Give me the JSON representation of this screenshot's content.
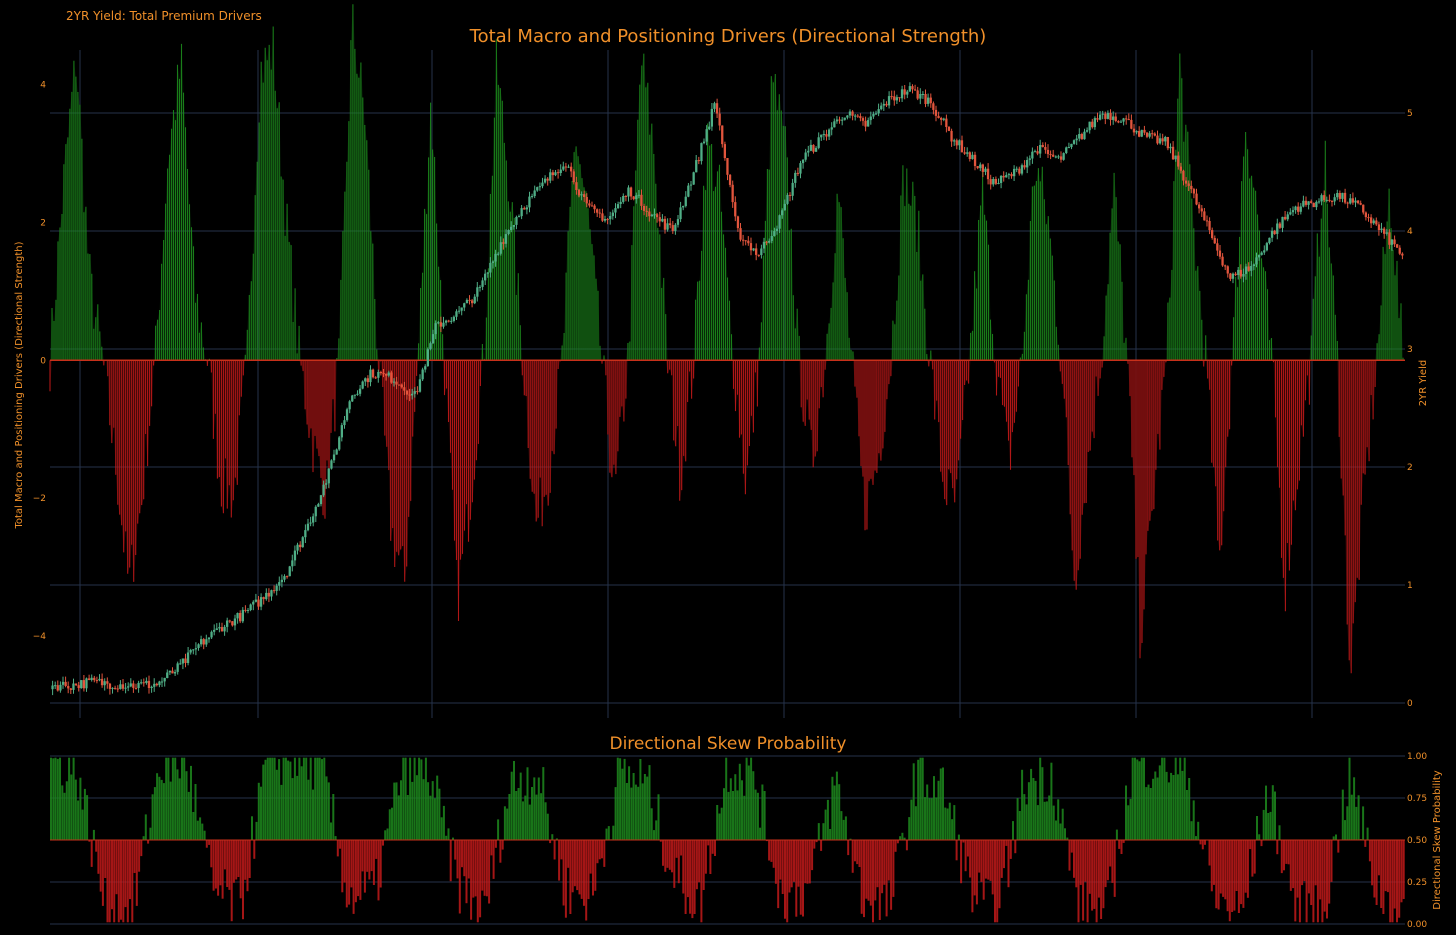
{
  "figure": {
    "title": "2YR Yield: Total Premium Drivers",
    "colors": {
      "background": "#000000",
      "text": "#f0902a",
      "positive": "#1d8a1d",
      "negative": "#c21a1a",
      "grid": "#26324a",
      "candle_up": "#4fae86",
      "candle_down": "#e2553d"
    }
  },
  "chart_data": [
    {
      "type": "area",
      "title": "Total Macro and Positioning Drivers (Directional Strength)",
      "ylabel": "Total Macro and Positioning Drivers (Directional Strength)",
      "ylim": [
        -5,
        4.5
      ],
      "yticks": [
        "4",
        "2",
        "0",
        "−2",
        "−4"
      ],
      "ytick_values": [
        4,
        2,
        0,
        -2,
        -4
      ],
      "grid": true,
      "series": [
        {
          "color": "positive/negative fill",
          "values_sampled": [
            0,
            2.5,
            4.4,
            1.2,
            0,
            -1.5,
            -3.3,
            -2.0,
            0,
            3.0,
            4.3,
            1.0,
            0,
            -1.8,
            -2.0,
            0,
            4.2,
            4.5,
            2.0,
            0,
            -1.2,
            -2.0,
            0,
            4.9,
            3.5,
            0,
            -2.5,
            -3.2,
            0,
            3.8,
            0,
            -3.5,
            -2.0,
            0,
            4.3,
            2.5,
            0,
            -2.4,
            -1.6,
            0,
            3.3,
            2.0,
            0,
            -2.0,
            0,
            4.4,
            3.0,
            0,
            -1.7,
            0,
            3.2,
            2.4,
            0,
            -1.8,
            0,
            4.1,
            3.0,
            0,
            -1.5,
            0,
            2.5,
            0,
            -2.2,
            -1.5,
            0,
            2.7,
            2.0,
            0,
            -1.8,
            -2.1,
            0,
            2.5,
            0,
            -1.5,
            0,
            2.9,
            2.0,
            0,
            -3.2,
            -1.5,
            0,
            2.5,
            0,
            -4.0,
            -2.0,
            0,
            4.3,
            2.0,
            0,
            -3.0,
            0,
            3.5,
            2.0,
            0,
            -3.3,
            -1.6,
            0,
            3.0,
            0,
            -4.6,
            -2.0,
            0,
            2.5,
            0
          ]
        }
      ],
      "overlay": {
        "name": "2YR Yield",
        "type": "candlestick",
        "ylabel": "2YR Yield",
        "ylim": [
          0,
          5
        ],
        "yticks": [
          "5",
          "4",
          "3",
          "2",
          "1",
          "0"
        ],
        "ytick_values": [
          5,
          4,
          3,
          2,
          1,
          0
        ],
        "values_sampled": [
          0.15,
          0.15,
          0.18,
          0.16,
          0.15,
          0.16,
          0.3,
          0.5,
          0.65,
          0.75,
          0.9,
          1.1,
          1.5,
          1.95,
          2.6,
          2.8,
          2.75,
          2.6,
          3.2,
          3.3,
          3.5,
          3.9,
          4.2,
          4.4,
          4.6,
          4.2,
          4.1,
          4.35,
          4.15,
          4.0,
          4.5,
          5.1,
          4.0,
          3.8,
          4.1,
          4.6,
          4.8,
          5.0,
          4.9,
          5.1,
          5.2,
          5.1,
          4.8,
          4.6,
          4.4,
          4.5,
          4.7,
          4.6,
          4.8,
          5.0,
          4.95,
          4.8,
          4.75,
          4.4,
          4.0,
          3.6,
          3.7,
          4.0,
          4.2,
          4.25,
          4.3,
          4.2,
          4.0,
          3.8
        ]
      }
    },
    {
      "type": "bar",
      "title": "Directional Skew Probability",
      "ylabel": "Directional Skew Probability",
      "ylim": [
        0,
        1
      ],
      "yticks": [
        "1.00",
        "0.75",
        "0.50",
        "0.25",
        "0.00"
      ],
      "ytick_values": [
        1.0,
        0.75,
        0.5,
        0.25,
        0.0
      ],
      "baseline": 0.5,
      "grid": true,
      "values_sampled": [
        0.98,
        0.9,
        0.1,
        0.05,
        0.95,
        0.97,
        0.2,
        0.1,
        0.98,
        0.99,
        0.95,
        0.15,
        0.2,
        0.95,
        0.9,
        0.25,
        0.05,
        0.85,
        0.9,
        0.2,
        0.15,
        0.9,
        0.85,
        0.3,
        0.1,
        0.95,
        0.9,
        0.15,
        0.2,
        0.85,
        0.15,
        0.1,
        0.9,
        0.8,
        0.2,
        0.05,
        0.85,
        0.9,
        0.1,
        0.05,
        0.95,
        0.98,
        0.9,
        0.15,
        0.05,
        0.8,
        0.1,
        0.05,
        0.9,
        0.2,
        0.05
      ]
    }
  ]
}
